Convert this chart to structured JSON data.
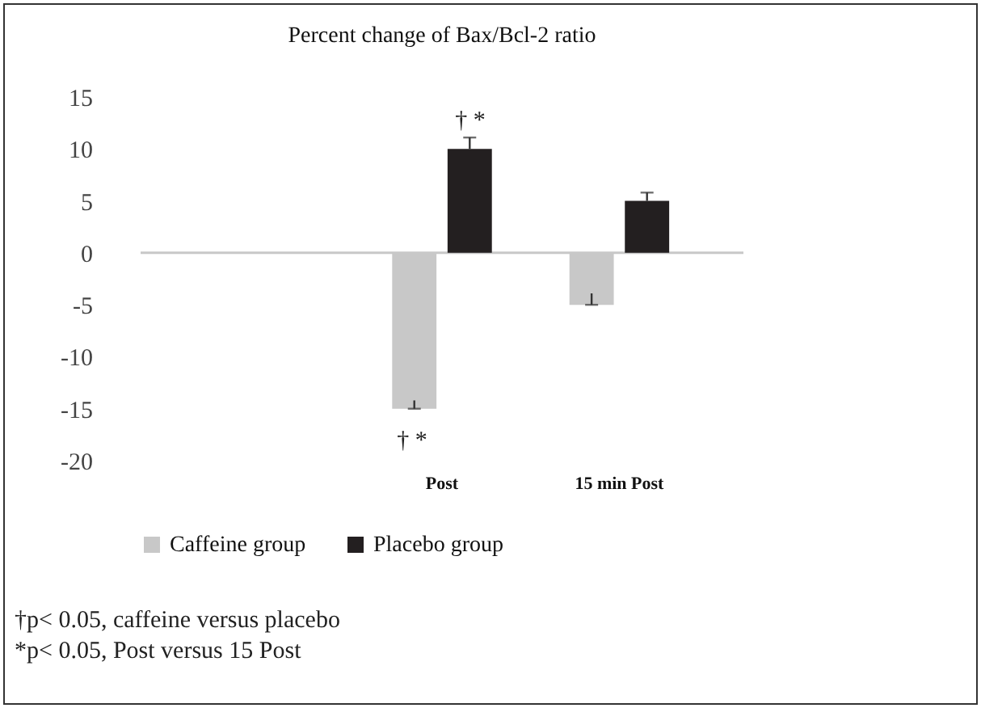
{
  "chart_data": {
    "type": "bar",
    "title": "Percent change of Bax/Bcl-2 ratio",
    "categories": [
      null,
      "Post",
      "15 min Post"
    ],
    "series": [
      {
        "name": "Caffeine  group",
        "color": "#c8c8c8",
        "values": [
          null,
          -15,
          -5
        ],
        "errors": [
          null,
          [
            -15,
            -14.2
          ],
          [
            -5,
            -3.9
          ]
        ]
      },
      {
        "name": "Placebo group",
        "color": "#231f20",
        "values": [
          null,
          10,
          5
        ],
        "errors": [
          null,
          [
            10,
            11.1
          ],
          [
            5,
            5.8
          ]
        ]
      }
    ],
    "ylim": [
      -20,
      15
    ],
    "yticks": [
      -20,
      -15,
      -10,
      -5,
      0,
      5,
      10,
      15
    ],
    "legend": "bottom",
    "annotations": [
      "† *",
      "† *",
      "†p< 0.05, caffeine versus placebo",
      "*p< 0.05, Post versus 15 Post"
    ]
  }
}
